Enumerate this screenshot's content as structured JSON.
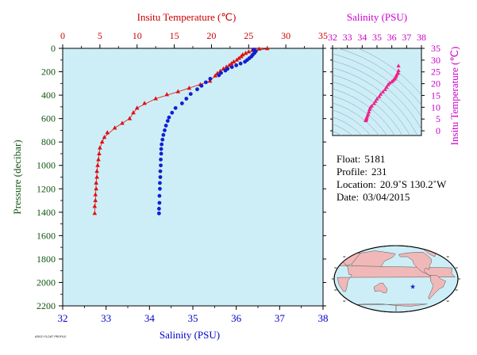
{
  "chart_data": [
    {
      "type": "scatter",
      "title_top": "Insitu Temperature (℃)",
      "xlabel_bottom": "Salinity (PSU)",
      "ylabel": "Pressure (decibar)",
      "top_axis": {
        "range": [
          0,
          35
        ],
        "ticks": [
          0,
          5,
          10,
          15,
          20,
          25,
          30,
          35
        ]
      },
      "bottom_axis": {
        "range": [
          32,
          38
        ],
        "ticks": [
          32,
          33,
          34,
          35,
          36,
          37,
          38
        ]
      },
      "y_axis": {
        "range": [
          0,
          2200
        ],
        "reversed": true,
        "ticks": [
          0,
          200,
          400,
          600,
          800,
          1000,
          1200,
          1400,
          1600,
          1800,
          2000,
          2200
        ]
      },
      "colors": {
        "plot_bg": "#cdeef7",
        "temperature": "#e01010",
        "salinity": "#1020d0",
        "top_axis": "#cc0000",
        "bottom_axis": "#0000cc",
        "left_axis": "#115511"
      },
      "series": [
        {
          "marker": "triangle",
          "color": "#e01010",
          "axis": "top",
          "points": [
            [
              27.5,
              2
            ],
            [
              26.4,
              6
            ],
            [
              25.9,
              12
            ],
            [
              25.5,
              18
            ],
            [
              25.0,
              30
            ],
            [
              24.6,
              42
            ],
            [
              24.2,
              55
            ],
            [
              24.0,
              70
            ],
            [
              23.7,
              85
            ],
            [
              23.4,
              100
            ],
            [
              23.0,
              115
            ],
            [
              22.7,
              130
            ],
            [
              22.4,
              145
            ],
            [
              22.0,
              160
            ],
            [
              21.6,
              175
            ],
            [
              21.2,
              195
            ],
            [
              20.8,
              215
            ],
            [
              20.5,
              235
            ],
            [
              19.8,
              280
            ],
            [
              18.5,
              310
            ],
            [
              17.0,
              340
            ],
            [
              15.5,
              370
            ],
            [
              14.0,
              395
            ],
            [
              12.5,
              430
            ],
            [
              11.0,
              470
            ],
            [
              10.0,
              510
            ],
            [
              9.5,
              550
            ],
            [
              9.0,
              600
            ],
            [
              8.0,
              640
            ],
            [
              7.0,
              680
            ],
            [
              6.0,
              720
            ],
            [
              5.6,
              760
            ],
            [
              5.3,
              800
            ],
            [
              5.0,
              850
            ],
            [
              4.9,
              900
            ],
            [
              4.8,
              950
            ],
            [
              4.7,
              1000
            ],
            [
              4.6,
              1050
            ],
            [
              4.6,
              1100
            ],
            [
              4.5,
              1150
            ],
            [
              4.5,
              1200
            ],
            [
              4.4,
              1250
            ],
            [
              4.4,
              1300
            ],
            [
              4.3,
              1350
            ],
            [
              4.3,
              1410
            ]
          ],
          "line": [
            [
              27.5,
              2
            ],
            [
              25.0,
              30
            ],
            [
              23.4,
              100
            ],
            [
              21.2,
              195
            ],
            [
              20.5,
              235
            ],
            [
              19.8,
              280
            ],
            [
              15.5,
              370
            ],
            [
              12.5,
              430
            ],
            [
              10.0,
              510
            ],
            [
              9.0,
              600
            ],
            [
              7.0,
              680
            ],
            [
              5.6,
              760
            ],
            [
              5.0,
              850
            ],
            [
              4.7,
              1000
            ],
            [
              4.5,
              1150
            ],
            [
              4.4,
              1300
            ],
            [
              4.3,
              1410
            ]
          ]
        },
        {
          "marker": "circle",
          "color": "#1020d0",
          "axis": "bottom",
          "points": [
            [
              36.4,
              10
            ],
            [
              36.45,
              25
            ],
            [
              36.42,
              40
            ],
            [
              36.38,
              55
            ],
            [
              36.35,
              70
            ],
            [
              36.3,
              85
            ],
            [
              36.25,
              100
            ],
            [
              36.2,
              115
            ],
            [
              36.1,
              130
            ],
            [
              36.0,
              145
            ],
            [
              35.9,
              160
            ],
            [
              35.8,
              175
            ],
            [
              35.75,
              190
            ],
            [
              35.65,
              210
            ],
            [
              35.6,
              230
            ],
            [
              35.4,
              260
            ],
            [
              35.3,
              290
            ],
            [
              35.2,
              320
            ],
            [
              35.1,
              350
            ],
            [
              34.95,
              390
            ],
            [
              34.85,
              430
            ],
            [
              34.75,
              470
            ],
            [
              34.6,
              510
            ],
            [
              34.52,
              550
            ],
            [
              34.45,
              590
            ],
            [
              34.42,
              620
            ],
            [
              34.38,
              660
            ],
            [
              34.35,
              700
            ],
            [
              34.32,
              740
            ],
            [
              34.3,
              780
            ],
            [
              34.28,
              820
            ],
            [
              34.27,
              860
            ],
            [
              34.27,
              900
            ],
            [
              34.26,
              950
            ],
            [
              34.26,
              1000
            ],
            [
              34.25,
              1050
            ],
            [
              34.25,
              1100
            ],
            [
              34.24,
              1150
            ],
            [
              34.24,
              1200
            ],
            [
              34.23,
              1260
            ],
            [
              34.23,
              1320
            ],
            [
              34.22,
              1370
            ],
            [
              34.22,
              1410
            ]
          ]
        }
      ]
    },
    {
      "type": "scatter",
      "title_top": "Salinity (PSU)",
      "ylabel_right": "Insitu Temperature (℃)",
      "top_axis": {
        "range": [
          32,
          38
        ],
        "ticks": [
          32,
          33,
          34,
          35,
          36,
          37,
          38
        ]
      },
      "right_axis": {
        "range": [
          -2,
          35
        ],
        "ticks": [
          0,
          5,
          10,
          15,
          20,
          25,
          30,
          35
        ]
      },
      "colors": {
        "plot_bg": "#cdeef7",
        "axis": "#cc00cc",
        "points": "#ee2288",
        "contour": "#8899aa"
      },
      "points": [
        [
          36.45,
          27.5
        ],
        [
          36.45,
          25.5
        ],
        [
          36.42,
          24.5
        ],
        [
          36.35,
          24
        ],
        [
          36.3,
          23.3
        ],
        [
          36.25,
          22.7
        ],
        [
          36.2,
          22
        ],
        [
          36.1,
          21.4
        ],
        [
          36.0,
          20.8
        ],
        [
          35.85,
          20.2
        ],
        [
          35.75,
          19.5
        ],
        [
          35.65,
          18.5
        ],
        [
          35.55,
          17.5
        ],
        [
          35.4,
          16.5
        ],
        [
          35.25,
          15.5
        ],
        [
          35.15,
          14.5
        ],
        [
          35.0,
          13.5
        ],
        [
          34.9,
          12.5
        ],
        [
          34.8,
          11.5
        ],
        [
          34.65,
          10.5
        ],
        [
          34.55,
          9.8
        ],
        [
          34.5,
          9
        ],
        [
          34.45,
          8
        ],
        [
          34.4,
          7
        ],
        [
          34.35,
          6.2
        ],
        [
          34.3,
          5.5
        ],
        [
          34.28,
          5
        ],
        [
          34.26,
          4.7
        ],
        [
          34.25,
          4.5
        ],
        [
          34.23,
          4.3
        ]
      ]
    }
  ],
  "info": {
    "float_label": "Float:",
    "float_value": "5181",
    "profile_label": "Profile:",
    "profile_value": "231",
    "location_label": "Location:",
    "location_value": "20.9˚S  130.2˚W",
    "date_label": "Date:",
    "date_value": "03/04/2015"
  },
  "map": {
    "land_color": "#f0b8b8",
    "ocean_color": "#cdeef7",
    "marker_color": "#1020d0",
    "marker_lon": -130.2,
    "marker_lat": -20.9
  },
  "credit": "ARGO FLOAT PROFILE"
}
